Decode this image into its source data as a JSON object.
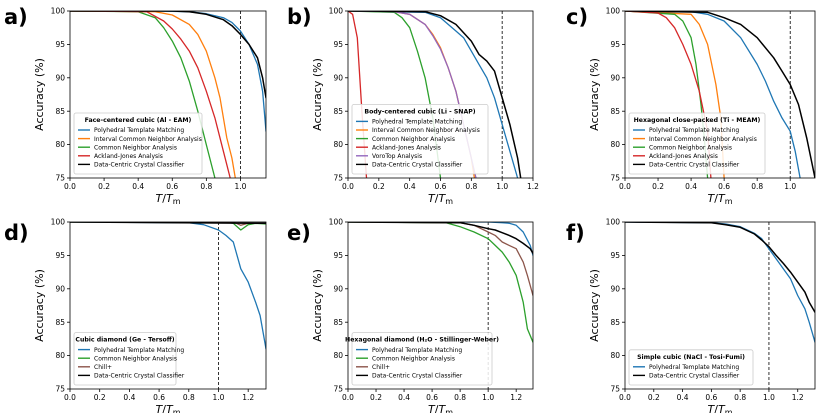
{
  "colors": {
    "ptm": "#1f77b4",
    "icna": "#ff7f0e",
    "cna": "#2ca02c",
    "aja": "#d62728",
    "vorotop": "#9467bd",
    "chill": "#8c564b",
    "dccc": "#000000"
  },
  "chart_data": [
    {
      "type": "line",
      "panel": "a)",
      "legend_title": "Face-centered cubic (Al - EAM)",
      "xlabel": "T/Tm",
      "ylabel": "Accuracy (%)",
      "xlim": [
        0.0,
        1.15
      ],
      "ylim": [
        75,
        100
      ],
      "xticks": [
        "0.0",
        "0.2",
        "0.4",
        "0.6",
        "0.8",
        "1.0"
      ],
      "yticks": [
        "75",
        "80",
        "85",
        "90",
        "95",
        "100"
      ],
      "vline": 1.0,
      "legend": "lower-left",
      "series": [
        {
          "name": "Polyhedral Template Matching",
          "color_key": "ptm",
          "x": [
            0,
            0.5,
            0.7,
            0.8,
            0.9,
            0.95,
            1.0,
            1.05,
            1.1,
            1.13,
            1.15
          ],
          "y": [
            100,
            100,
            99.9,
            99.6,
            99,
            98.3,
            97,
            95,
            92,
            88,
            82
          ]
        },
        {
          "name": "Interval Common Neighbor Analysis",
          "color_key": "icna",
          "x": [
            0,
            0.5,
            0.6,
            0.7,
            0.75,
            0.8,
            0.85,
            0.88,
            0.92,
            0.95,
            0.97
          ],
          "y": [
            100,
            99.9,
            99.4,
            98,
            96.5,
            94,
            90,
            87,
            81,
            78,
            75
          ]
        },
        {
          "name": "Common Neighbor Analysis",
          "color_key": "cna",
          "x": [
            0,
            0.4,
            0.5,
            0.55,
            0.6,
            0.65,
            0.7,
            0.75,
            0.8,
            0.85
          ],
          "y": [
            100,
            99.9,
            99,
            97.5,
            95.5,
            93,
            89.5,
            85,
            80,
            75
          ]
        },
        {
          "name": "Ackland-Jones Analysis",
          "color_key": "aja",
          "x": [
            0,
            0.45,
            0.55,
            0.6,
            0.65,
            0.7,
            0.75,
            0.8,
            0.85,
            0.9,
            0.94
          ],
          "y": [
            100,
            99.9,
            98.5,
            97.3,
            95.8,
            94,
            91.5,
            88,
            84,
            79,
            75
          ]
        },
        {
          "name": "Data-Centric Crystal Classifier",
          "color_key": "dccc",
          "x": [
            0,
            0.6,
            0.7,
            0.8,
            0.9,
            0.95,
            1.0,
            1.05,
            1.1,
            1.13,
            1.15
          ],
          "y": [
            100,
            100,
            99.9,
            99.5,
            98.7,
            97.8,
            96.5,
            95,
            93,
            90,
            87
          ]
        }
      ]
    },
    {
      "type": "line",
      "panel": "b)",
      "legend_title": "Body-centered cubic (Li - SNAP)",
      "xlabel": "T/Tm",
      "ylabel": "Accuracy (%)",
      "xlim": [
        0.0,
        1.2
      ],
      "ylim": [
        75,
        100
      ],
      "xticks": [
        "0.0",
        "0.2",
        "0.4",
        "0.6",
        "0.8",
        "1.0",
        "1.2"
      ],
      "yticks": [
        "75",
        "80",
        "85",
        "90",
        "95",
        "100"
      ],
      "vline": 1.0,
      "legend": "lower-left",
      "series": [
        {
          "name": "Polyhedral Template Matching",
          "color_key": "ptm",
          "x": [
            0,
            0.5,
            0.6,
            0.7,
            0.75,
            0.8,
            0.85,
            0.9,
            0.95,
            1.0,
            1.05,
            1.1
          ],
          "y": [
            100,
            99.8,
            99,
            97,
            96,
            94,
            92,
            90,
            87,
            83,
            79,
            75
          ]
        },
        {
          "name": "Interval Common Neighbor Analysis",
          "color_key": "icna",
          "x": [
            0,
            0.3,
            0.4,
            0.5,
            0.55,
            0.6,
            0.65,
            0.7,
            0.75,
            0.8,
            0.82
          ],
          "y": [
            100,
            99.9,
            99.5,
            98,
            96.5,
            94.5,
            91.5,
            88,
            83,
            78,
            75
          ]
        },
        {
          "name": "Common Neighbor Analysis",
          "color_key": "cna",
          "x": [
            0,
            0.3,
            0.35,
            0.4,
            0.45,
            0.5,
            0.55,
            0.6
          ],
          "y": [
            100,
            99.8,
            99,
            97.5,
            94,
            90,
            84,
            75
          ]
        },
        {
          "name": "Ackland-Jones Analysis",
          "color_key": "aja",
          "x": [
            0,
            0.03,
            0.06,
            0.09,
            0.12
          ],
          "y": [
            100,
            99.5,
            96,
            85,
            75
          ]
        },
        {
          "name": "VoroTop Analysis",
          "color_key": "vorotop",
          "x": [
            0,
            0.3,
            0.4,
            0.5,
            0.55,
            0.6,
            0.65,
            0.7,
            0.75,
            0.8,
            0.83
          ],
          "y": [
            100,
            99.9,
            99.5,
            98,
            96.3,
            94.3,
            91.5,
            88,
            83,
            78,
            75
          ]
        },
        {
          "name": "Data-Centric Crystal Classifier",
          "color_key": "dccc",
          "x": [
            0,
            0.5,
            0.6,
            0.7,
            0.8,
            0.85,
            0.9,
            0.95,
            1.0,
            1.05,
            1.1,
            1.12
          ],
          "y": [
            100,
            99.9,
            99.3,
            98,
            95.5,
            93.5,
            92.5,
            91,
            87,
            83,
            78,
            75
          ]
        }
      ]
    },
    {
      "type": "line",
      "panel": "c)",
      "legend_title": "Hexagonal close-packed (Ti - MEAM)",
      "xlabel": "T/Tm",
      "ylabel": "Accuracy (%)",
      "xlim": [
        0.0,
        1.15
      ],
      "ylim": [
        75,
        100
      ],
      "xticks": [
        "0.0",
        "0.2",
        "0.4",
        "0.6",
        "0.8",
        "1.0"
      ],
      "yticks": [
        "75",
        "80",
        "85",
        "90",
        "95",
        "100"
      ],
      "vline": 1.0,
      "legend": "lower-left",
      "series": [
        {
          "name": "Polyhedral Template Matching",
          "color_key": "ptm",
          "x": [
            0,
            0.4,
            0.5,
            0.6,
            0.7,
            0.8,
            0.85,
            0.9,
            0.95,
            1.0,
            1.03,
            1.06
          ],
          "y": [
            100,
            99.9,
            99.5,
            98.5,
            96,
            92,
            89.5,
            86.5,
            84,
            82,
            79,
            75
          ]
        },
        {
          "name": "Interval Common Neighbor Analysis",
          "color_key": "icna",
          "x": [
            0,
            0.4,
            0.45,
            0.5,
            0.55,
            0.58,
            0.6
          ],
          "y": [
            100,
            99.5,
            98,
            95,
            89,
            84,
            75
          ]
        },
        {
          "name": "Common Neighbor Analysis",
          "color_key": "cna",
          "x": [
            0,
            0.3,
            0.35,
            0.4,
            0.43,
            0.46,
            0.48,
            0.5
          ],
          "y": [
            100,
            99.5,
            98.5,
            96,
            92,
            86,
            81,
            75
          ]
        },
        {
          "name": "Ackland-Jones Analysis",
          "color_key": "aja",
          "x": [
            0,
            0.2,
            0.25,
            0.3,
            0.35,
            0.4,
            0.45,
            0.5,
            0.52
          ],
          "y": [
            100,
            99.7,
            99,
            97.5,
            95,
            92,
            88,
            82,
            75
          ]
        },
        {
          "name": "Data-Centric Crystal Classifier",
          "color_key": "dccc",
          "x": [
            0,
            0.5,
            0.6,
            0.7,
            0.8,
            0.9,
            0.95,
            1.0,
            1.05,
            1.1,
            1.15
          ],
          "y": [
            100,
            99.8,
            99,
            98,
            96,
            93,
            91,
            89,
            86,
            81,
            75
          ]
        }
      ]
    },
    {
      "type": "line",
      "panel": "d)",
      "legend_title": "Cubic diamond (Ge - Tersoff)",
      "xlabel": "T/Tm",
      "ylabel": "Accuracy (%)",
      "xlim": [
        0.0,
        1.32
      ],
      "ylim": [
        75,
        100
      ],
      "xticks": [
        "0.0",
        "0.2",
        "0.4",
        "0.6",
        "0.8",
        "1.0",
        "1.2"
      ],
      "yticks": [
        "75",
        "80",
        "85",
        "90",
        "95",
        "100"
      ],
      "vline": 1.0,
      "legend": "lower-left",
      "series": [
        {
          "name": "Polyhedral Template Matching",
          "color_key": "ptm",
          "x": [
            0,
            0.8,
            0.9,
            1.0,
            1.05,
            1.1,
            1.15,
            1.2,
            1.25,
            1.28,
            1.32
          ],
          "y": [
            100,
            99.9,
            99.6,
            98.8,
            98,
            97,
            93,
            91,
            88,
            86,
            81
          ]
        },
        {
          "name": "Common Neighbor Analysis",
          "color_key": "cna",
          "x": [
            0,
            1.05,
            1.1,
            1.15,
            1.2,
            1.25,
            1.32
          ],
          "y": [
            100,
            100,
            99.8,
            98.8,
            99.6,
            99.8,
            99.7
          ]
        },
        {
          "name": "Chill+",
          "color_key": "chill",
          "x": [
            0,
            1.1,
            1.15,
            1.2,
            1.32
          ],
          "y": [
            100,
            100,
            99.5,
            99.8,
            99.8
          ]
        },
        {
          "name": "Data-Centric Crystal Classifier",
          "color_key": "dccc",
          "x": [
            0,
            1.32
          ],
          "y": [
            100,
            99.8
          ]
        }
      ]
    },
    {
      "type": "line",
      "panel": "e)",
      "legend_title": "Hexagonal diamond (H₂O - Stillinger-Weber)",
      "xlabel": "T/Tm",
      "ylabel": "Accuracy (%)",
      "xlim": [
        0.0,
        1.32
      ],
      "ylim": [
        75,
        100
      ],
      "xticks": [
        "0.0",
        "0.2",
        "0.4",
        "0.6",
        "0.8",
        "1.0",
        "1.2"
      ],
      "yticks": [
        "75",
        "80",
        "85",
        "90",
        "95",
        "100"
      ],
      "vline": 1.0,
      "legend": "lower-left",
      "series": [
        {
          "name": "Polyhedral Template Matching",
          "color_key": "ptm",
          "x": [
            0,
            1.0,
            1.1,
            1.15,
            1.2,
            1.25,
            1.3,
            1.32
          ],
          "y": [
            100,
            100,
            99.9,
            99.8,
            99.5,
            98.5,
            96.5,
            95
          ]
        },
        {
          "name": "Common Neighbor Analysis",
          "color_key": "cna",
          "x": [
            0,
            0.7,
            0.8,
            0.9,
            1.0,
            1.05,
            1.1,
            1.15,
            1.2,
            1.25,
            1.28,
            1.32
          ],
          "y": [
            100,
            99.9,
            99.3,
            98.5,
            97.5,
            96.5,
            95.5,
            94,
            92,
            88,
            84,
            82
          ]
        },
        {
          "name": "Chill+",
          "color_key": "chill",
          "x": [
            0,
            0.8,
            0.9,
            1.0,
            1.05,
            1.1,
            1.15,
            1.2,
            1.25,
            1.28,
            1.32
          ],
          "y": [
            100,
            99.9,
            99.5,
            98.5,
            98,
            97,
            96.5,
            96,
            94,
            92,
            89
          ]
        },
        {
          "name": "Data-Centric Crystal Classifier",
          "color_key": "dccc",
          "x": [
            0,
            0.8,
            0.9,
            1.0,
            1.05,
            1.1,
            1.15,
            1.2,
            1.25,
            1.3,
            1.32
          ],
          "y": [
            100,
            99.9,
            99.5,
            99,
            98.8,
            98.4,
            98,
            97.5,
            96.8,
            96,
            95.3
          ]
        }
      ]
    },
    {
      "type": "line",
      "panel": "f)",
      "legend_title": "Simple cubic (NaCl - Tosi-Fumi)",
      "xlabel": "T/Tm",
      "ylabel": "Accuracy (%)",
      "xlim": [
        0.0,
        1.32
      ],
      "ylim": [
        75,
        100
      ],
      "xticks": [
        "0.0",
        "0.2",
        "0.4",
        "0.6",
        "0.8",
        "1.0",
        "1.2"
      ],
      "yticks": [
        "75",
        "80",
        "85",
        "90",
        "95",
        "100"
      ],
      "vline": 1.0,
      "legend": "lower-left",
      "series": [
        {
          "name": "Polyhedral Template Matching",
          "color_key": "ptm",
          "x": [
            0,
            0.6,
            0.7,
            0.8,
            0.9,
            0.95,
            1.0,
            1.05,
            1.1,
            1.15,
            1.2,
            1.25,
            1.28,
            1.32
          ],
          "y": [
            100,
            99.9,
            99.7,
            99.3,
            98.3,
            97.5,
            96,
            94.5,
            93,
            91.5,
            89,
            87,
            85,
            82
          ]
        },
        {
          "name": "Data-Centric Crystal Classifier",
          "color_key": "dccc",
          "x": [
            0,
            0.6,
            0.7,
            0.8,
            0.9,
            0.95,
            1.0,
            1.05,
            1.1,
            1.15,
            1.2,
            1.25,
            1.28,
            1.32
          ],
          "y": [
            100,
            99.9,
            99.6,
            99.2,
            98.2,
            97.3,
            96.3,
            95,
            93.8,
            92.5,
            91,
            89.5,
            88,
            86.5
          ]
        }
      ]
    }
  ]
}
